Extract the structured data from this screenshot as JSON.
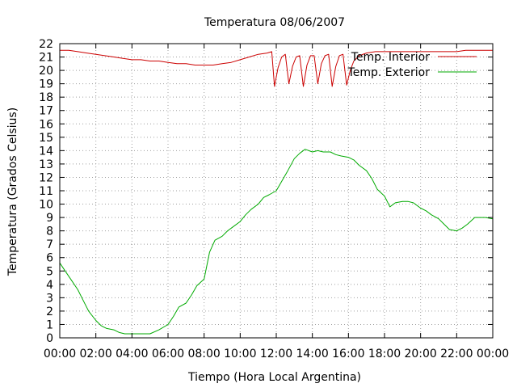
{
  "chart_data": {
    "type": "line",
    "title": "Temperatura 08/06/2007",
    "xlabel": "Tiempo (Hora Local Argentina)",
    "ylabel": "Temperatura (Grados Celsius)",
    "xlim": [
      0,
      24
    ],
    "ylim": [
      0,
      22
    ],
    "x_tick_labels": [
      "00:00",
      "02:00",
      "04:00",
      "06:00",
      "08:00",
      "10:00",
      "12:00",
      "14:00",
      "16:00",
      "18:00",
      "20:00",
      "22:00",
      "00:00"
    ],
    "x_tick_values": [
      0,
      2,
      4,
      6,
      8,
      10,
      12,
      14,
      16,
      18,
      20,
      22,
      24
    ],
    "y_tick_values": [
      0,
      1,
      2,
      3,
      4,
      5,
      6,
      7,
      8,
      9,
      10,
      11,
      12,
      13,
      14,
      15,
      16,
      17,
      18,
      19,
      20,
      21,
      22
    ],
    "grid": true,
    "legend_position": "top-right",
    "colors": {
      "interior": "#cc0000",
      "exterior": "#00aa00"
    },
    "series": [
      {
        "name": "Temp. Interior",
        "x": [
          0,
          0.5,
          1,
          1.5,
          2,
          2.5,
          3,
          3.5,
          4,
          4.5,
          5,
          5.5,
          6,
          6.5,
          7,
          7.5,
          8,
          8.5,
          9,
          9.5,
          10,
          10.5,
          11,
          11.5,
          11.75,
          11.9,
          12.1,
          12.3,
          12.5,
          12.7,
          12.9,
          13.1,
          13.3,
          13.5,
          13.7,
          13.9,
          14.1,
          14.3,
          14.5,
          14.7,
          14.9,
          15.1,
          15.3,
          15.5,
          15.7,
          15.9,
          16.1,
          16.3,
          16.6,
          17,
          17.5,
          18,
          18.5,
          19,
          19.5,
          20,
          20.5,
          21,
          21.5,
          22,
          22.5,
          23,
          23.5,
          24
        ],
        "y": [
          21.5,
          21.5,
          21.4,
          21.3,
          21.2,
          21.1,
          21.0,
          20.9,
          20.8,
          20.8,
          20.7,
          20.7,
          20.6,
          20.5,
          20.5,
          20.4,
          20.4,
          20.4,
          20.5,
          20.6,
          20.8,
          21.0,
          21.2,
          21.3,
          21.4,
          18.8,
          20.2,
          21.0,
          21.2,
          19.0,
          20.3,
          21.0,
          21.1,
          18.8,
          20.4,
          21.1,
          21.1,
          19.0,
          20.5,
          21.1,
          21.2,
          18.8,
          20.3,
          21.1,
          21.2,
          18.9,
          20.0,
          20.7,
          21.1,
          21.3,
          21.4,
          21.4,
          21.4,
          21.4,
          21.4,
          21.4,
          21.4,
          21.4,
          21.4,
          21.4,
          21.5,
          21.5,
          21.5,
          21.5
        ]
      },
      {
        "name": "Temp. Exterior",
        "x": [
          0,
          0.3,
          0.6,
          1,
          1.3,
          1.6,
          2,
          2.3,
          2.6,
          3,
          3.3,
          3.6,
          4,
          4.5,
          5,
          5.5,
          6,
          6.3,
          6.6,
          7,
          7.3,
          7.6,
          8,
          8.3,
          8.6,
          9,
          9.3,
          9.6,
          10,
          10.3,
          10.6,
          11,
          11.3,
          11.6,
          12,
          12.3,
          12.6,
          13,
          13.3,
          13.6,
          14,
          14.3,
          14.6,
          15,
          15.3,
          15.6,
          16,
          16.3,
          16.6,
          17,
          17.3,
          17.6,
          18,
          18.3,
          18.6,
          19,
          19.3,
          19.6,
          20,
          20.3,
          20.6,
          21,
          21.3,
          21.6,
          22,
          22.3,
          22.6,
          23,
          23.3,
          23.6,
          24
        ],
        "y": [
          5.6,
          5.0,
          4.4,
          3.6,
          2.8,
          2.0,
          1.3,
          0.9,
          0.7,
          0.6,
          0.4,
          0.3,
          0.3,
          0.3,
          0.3,
          0.6,
          1.0,
          1.6,
          2.3,
          2.6,
          3.2,
          3.9,
          4.4,
          6.4,
          7.3,
          7.6,
          8.0,
          8.3,
          8.7,
          9.2,
          9.6,
          10.0,
          10.5,
          10.7,
          11.0,
          11.7,
          12.4,
          13.4,
          13.8,
          14.1,
          13.9,
          14.0,
          13.9,
          13.9,
          13.7,
          13.6,
          13.5,
          13.3,
          12.9,
          12.5,
          11.9,
          11.1,
          10.6,
          9.8,
          10.1,
          10.2,
          10.2,
          10.1,
          9.7,
          9.5,
          9.2,
          8.9,
          8.5,
          8.1,
          8.0,
          8.2,
          8.5,
          9.0,
          9.0,
          9.0,
          8.9
        ]
      }
    ]
  }
}
